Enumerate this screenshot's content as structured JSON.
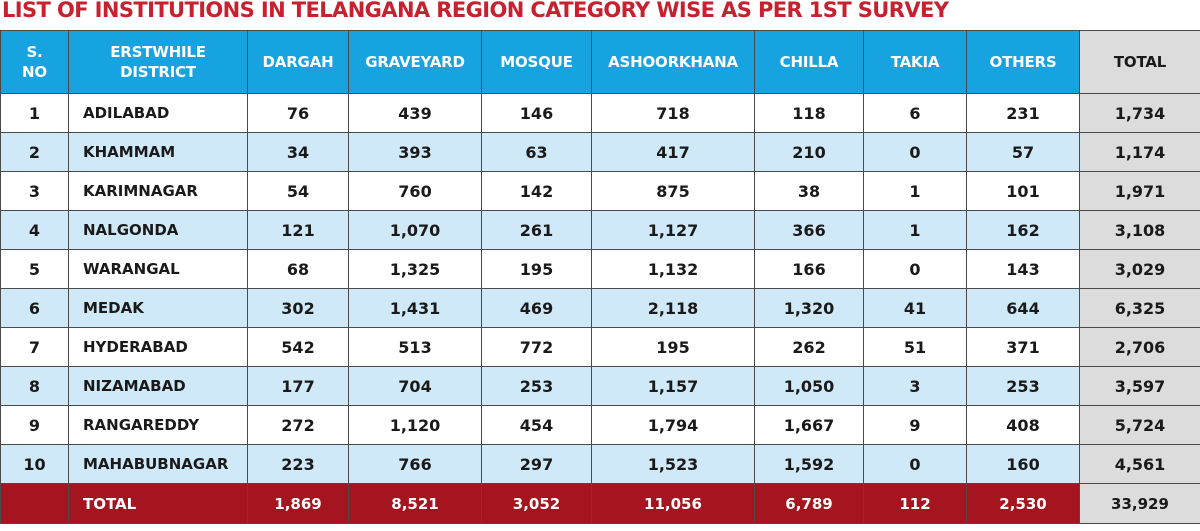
{
  "chart_data": {
    "type": "table",
    "title": "LIST OF INSTITUTIONS IN TELANGANA REGION  CATEGORY WISE AS PER 1ST SURVEY",
    "columns": [
      "S. NO",
      "ERSTWHILE DISTRICT",
      "DARGAH",
      "GRAVEYARD",
      "MOSQUE",
      "ASHOORKHANA",
      "CHILLA",
      "TAKIA",
      "OTHERS",
      "TOTAL"
    ],
    "rows": [
      [
        "1",
        "ADILABAD",
        "76",
        "439",
        "146",
        "718",
        "118",
        "6",
        "231",
        "1,734"
      ],
      [
        "2",
        "KHAMMAM",
        "34",
        "393",
        "63",
        "417",
        "210",
        "0",
        "57",
        "1,174"
      ],
      [
        "3",
        "KARIMNAGAR",
        "54",
        "760",
        "142",
        "875",
        "38",
        "1",
        "101",
        "1,971"
      ],
      [
        "4",
        "NALGONDA",
        "121",
        "1,070",
        "261",
        "1,127",
        "366",
        "1",
        "162",
        "3,108"
      ],
      [
        "5",
        "WARANGAL",
        "68",
        "1,325",
        "195",
        "1,132",
        "166",
        "0",
        "143",
        "3,029"
      ],
      [
        "6",
        "MEDAK",
        "302",
        "1,431",
        "469",
        "2,118",
        "1,320",
        "41",
        "644",
        "6,325"
      ],
      [
        "7",
        "HYDERABAD",
        "542",
        "513",
        "772",
        "195",
        "262",
        "51",
        "371",
        "2,706"
      ],
      [
        "8",
        "NIZAMABAD",
        "177",
        "704",
        "253",
        "1,157",
        "1,050",
        "3",
        "253",
        "3,597"
      ],
      [
        "9",
        "RANGAREDDY",
        "272",
        "1,120",
        "454",
        "1,794",
        "1,667",
        "9",
        "408",
        "5,724"
      ],
      [
        "10",
        "MAHABUBNAGAR",
        "223",
        "766",
        "297",
        "1,523",
        "1,592",
        "0",
        "160",
        "4,561"
      ]
    ],
    "footer": [
      "",
      "TOTAL",
      "1,869",
      "8,521",
      "3,052",
      "11,056",
      "6,789",
      "112",
      "2,530",
      "33,929"
    ]
  },
  "colors": {
    "title": "#c8202e",
    "header_bg": "#17a3df",
    "stripe": "#cfe9f9",
    "footer_bg": "#a5151f",
    "total_col_bg": "#dcdcdc"
  }
}
